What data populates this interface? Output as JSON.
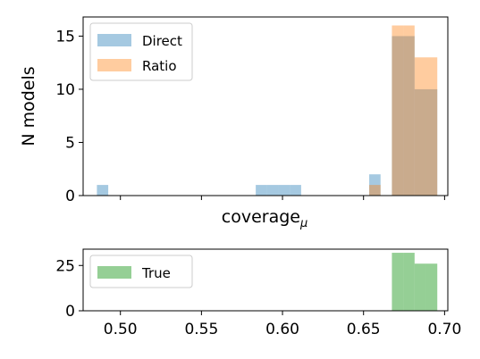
{
  "chart_data": [
    {
      "type": "histogram",
      "panel": "top",
      "xlabel": "coverage",
      "xlabel_subscript": "μ",
      "ylabel": "N models",
      "ylim": [
        0,
        16.8
      ],
      "yticks": [
        0,
        5,
        10,
        15
      ],
      "xlim": [
        0.477,
        0.702
      ],
      "xticks": [
        0.5,
        0.55,
        0.6,
        0.65,
        0.7
      ],
      "show_xtick_labels": false,
      "legend_position": "upper-left",
      "series": [
        {
          "name": "Direct",
          "color": "#1f77b4",
          "alpha": 0.4,
          "bins": [
            {
              "x0": 0.4855,
              "x1": 0.4925,
              "value": 1
            },
            {
              "x0": 0.5835,
              "x1": 0.5905,
              "value": 1
            },
            {
              "x0": 0.5905,
              "x1": 0.5975,
              "value": 1
            },
            {
              "x0": 0.5975,
              "x1": 0.6045,
              "value": 1
            },
            {
              "x0": 0.6045,
              "x1": 0.6115,
              "value": 1
            },
            {
              "x0": 0.6535,
              "x1": 0.6605,
              "value": 2
            },
            {
              "x0": 0.6605,
              "x1": 0.6675,
              "value": 0
            },
            {
              "x0": 0.6675,
              "x1": 0.6745,
              "value": 15
            },
            {
              "x0": 0.6745,
              "x1": 0.6815,
              "value": 15
            },
            {
              "x0": 0.6815,
              "x1": 0.6885,
              "value": 10
            },
            {
              "x0": 0.6885,
              "x1": 0.6955,
              "value": 10
            }
          ]
        },
        {
          "name": "Ratio",
          "color": "#ff7f0e",
          "alpha": 0.4,
          "bins": [
            {
              "x0": 0.6535,
              "x1": 0.6605,
              "value": 1
            },
            {
              "x0": 0.6675,
              "x1": 0.6745,
              "value": 16
            },
            {
              "x0": 0.6745,
              "x1": 0.6815,
              "value": 16
            },
            {
              "x0": 0.6815,
              "x1": 0.6885,
              "value": 13
            },
            {
              "x0": 0.6885,
              "x1": 0.6955,
              "value": 13
            }
          ]
        }
      ]
    },
    {
      "type": "histogram",
      "panel": "bottom",
      "xlabel": "",
      "ylabel": "",
      "ylim": [
        0,
        34
      ],
      "yticks": [
        0,
        25
      ],
      "xlim": [
        0.477,
        0.702
      ],
      "xticks": [
        0.5,
        0.55,
        0.6,
        0.65,
        0.7
      ],
      "xtick_labels": [
        "0.50",
        "0.55",
        "0.60",
        "0.65",
        "0.70"
      ],
      "show_xtick_labels": true,
      "legend_position": "upper-left",
      "series": [
        {
          "name": "True",
          "color": "#2ca02c",
          "alpha": 0.5,
          "bins": [
            {
              "x0": 0.6675,
              "x1": 0.6745,
              "value": 32
            },
            {
              "x0": 0.6745,
              "x1": 0.6815,
              "value": 32
            },
            {
              "x0": 0.6815,
              "x1": 0.6885,
              "value": 26
            },
            {
              "x0": 0.6885,
              "x1": 0.6955,
              "value": 26
            }
          ]
        }
      ]
    }
  ]
}
